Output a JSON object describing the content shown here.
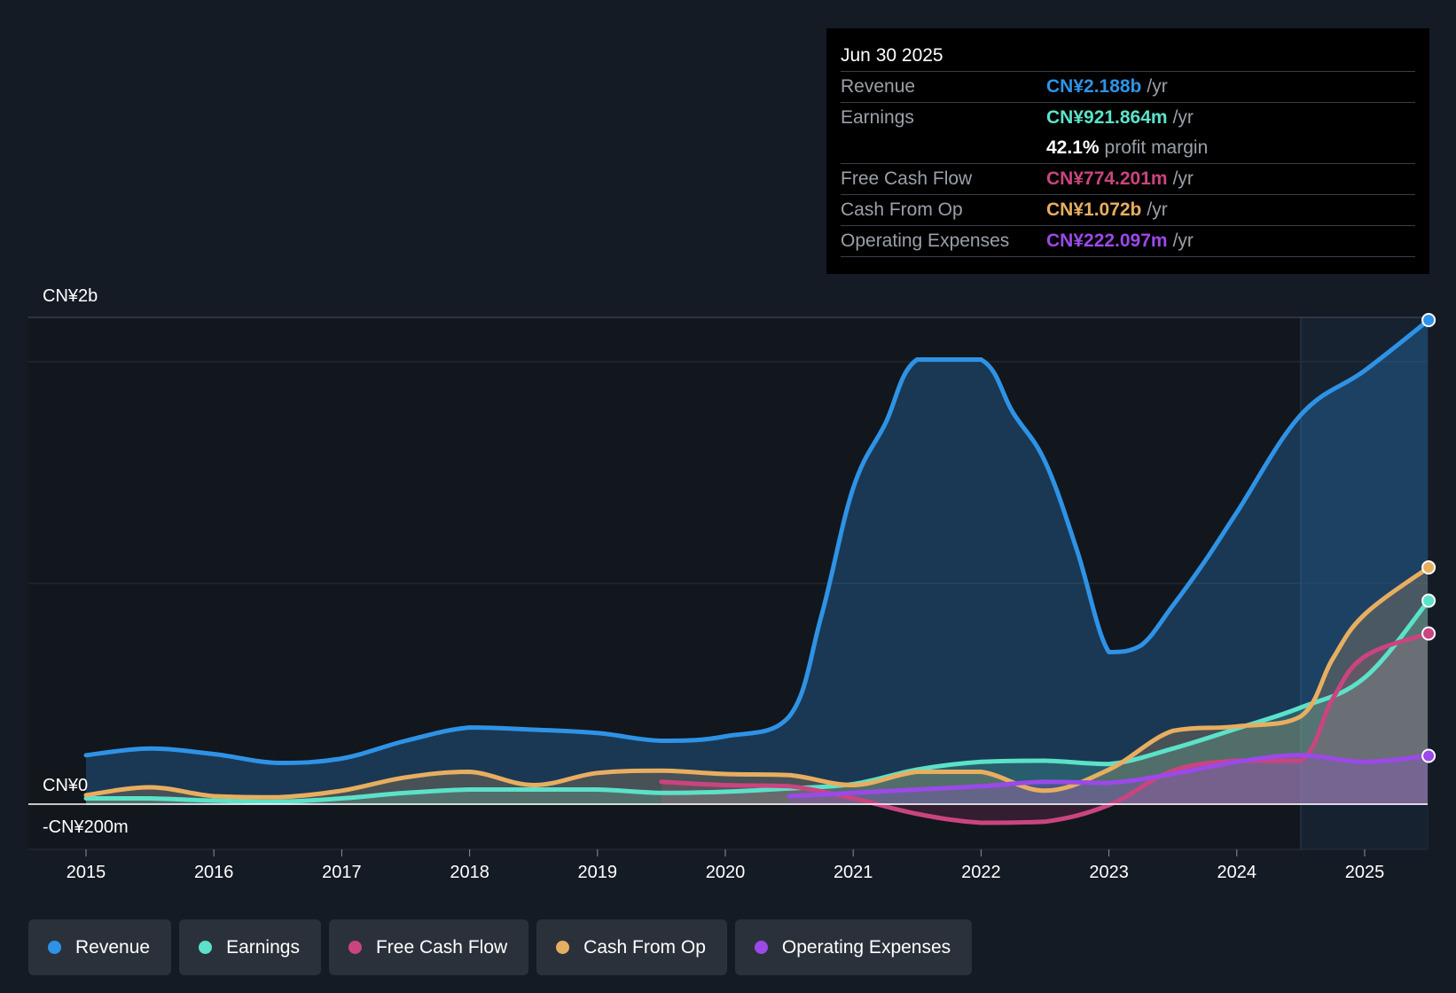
{
  "chart_data": {
    "type": "area",
    "y_axis": {
      "top_label": "CN¥2b",
      "zero_label": "CN¥0",
      "bottom_label": "-CN¥200m",
      "ylim": [
        -200,
        2200
      ]
    },
    "x_axis": {
      "ticks": [
        "2015",
        "2016",
        "2017",
        "2018",
        "2019",
        "2020",
        "2021",
        "2022",
        "2023",
        "2024",
        "2025"
      ],
      "xlim": [
        2014.55,
        2025.5
      ]
    },
    "forecast_start": 2024.5,
    "series": [
      {
        "name": "Revenue",
        "color": "#2e93e6",
        "x": [
          2015.0,
          2015.5,
          2016.0,
          2016.5,
          2017.0,
          2017.5,
          2018.0,
          2018.5,
          2019.0,
          2019.5,
          2020.0,
          2020.5,
          2020.75,
          2021.0,
          2021.25,
          2021.5,
          2022.0,
          2022.25,
          2022.5,
          2022.75,
          2023.0,
          2023.25,
          2023.5,
          2023.75,
          2024.0,
          2024.5,
          2025.0,
          2025.5
        ],
        "values": [
          225,
          255,
          230,
          190,
          210,
          290,
          350,
          340,
          325,
          290,
          310,
          400,
          850,
          1430,
          1720,
          2010,
          2010,
          1770,
          1550,
          1150,
          690,
          720,
          900,
          1100,
          1320,
          1760,
          1960,
          2188
        ]
      },
      {
        "name": "Earnings",
        "color": "#5be2c8",
        "x": [
          2015.0,
          2015.5,
          2016.0,
          2016.5,
          2017.0,
          2017.5,
          2018.0,
          2018.5,
          2019.0,
          2019.5,
          2020.0,
          2020.5,
          2021.0,
          2021.5,
          2022.0,
          2022.5,
          2023.0,
          2023.5,
          2024.0,
          2024.5,
          2025.0,
          2025.5
        ],
        "values": [
          30,
          30,
          20,
          15,
          30,
          55,
          70,
          70,
          70,
          55,
          60,
          75,
          95,
          160,
          195,
          200,
          185,
          255,
          345,
          440,
          575,
          922
        ]
      },
      {
        "name": "Free Cash Flow",
        "color": "#c9457f",
        "x": [
          2019.5,
          2020.0,
          2020.5,
          2021.0,
          2021.5,
          2022.0,
          2022.5,
          2023.0,
          2023.5,
          2024.0,
          2024.5,
          2024.75,
          2025.0,
          2025.5
        ],
        "values": [
          105,
          90,
          85,
          30,
          -40,
          -80,
          -75,
          0,
          155,
          200,
          200,
          480,
          670,
          774
        ]
      },
      {
        "name": "Cash From Op",
        "color": "#e8ae60",
        "x": [
          2015.0,
          2015.5,
          2016.0,
          2016.5,
          2017.0,
          2017.5,
          2018.0,
          2018.5,
          2019.0,
          2019.5,
          2020.0,
          2020.5,
          2021.0,
          2021.5,
          2022.0,
          2022.5,
          2023.0,
          2023.5,
          2024.0,
          2024.5,
          2024.75,
          2025.0,
          2025.5
        ],
        "values": [
          45,
          80,
          40,
          35,
          65,
          125,
          150,
          90,
          145,
          155,
          140,
          135,
          90,
          150,
          150,
          65,
          160,
          335,
          355,
          400,
          660,
          860,
          1072
        ]
      },
      {
        "name": "Operating Expenses",
        "color": "#9b49e8",
        "x": [
          2020.5,
          2021.0,
          2021.5,
          2022.0,
          2022.5,
          2023.0,
          2023.5,
          2024.0,
          2024.5,
          2025.0,
          2025.5
        ],
        "values": [
          40,
          55,
          70,
          85,
          105,
          100,
          140,
          195,
          225,
          195,
          222
        ]
      }
    ]
  },
  "tooltip": {
    "date": "Jun 30 2025",
    "rows": [
      {
        "label": "Revenue",
        "value": "CN¥2.188b",
        "unit": "/yr",
        "color": "#2e93e6"
      },
      {
        "label": "Earnings",
        "value": "CN¥921.864m",
        "unit": "/yr",
        "color": "#5be2c8"
      },
      {
        "label": "",
        "value": "42.1%",
        "unit": "profit margin",
        "color": "#ffffff"
      },
      {
        "label": "Free Cash Flow",
        "value": "CN¥774.201m",
        "unit": "/yr",
        "color": "#c9457f"
      },
      {
        "label": "Cash From Op",
        "value": "CN¥1.072b",
        "unit": "/yr",
        "color": "#e8ae60"
      },
      {
        "label": "Operating Expenses",
        "value": "CN¥222.097m",
        "unit": "/yr",
        "color": "#9b49e8"
      }
    ]
  },
  "legend": [
    {
      "label": "Revenue",
      "color": "#2e93e6"
    },
    {
      "label": "Earnings",
      "color": "#5be2c8"
    },
    {
      "label": "Free Cash Flow",
      "color": "#c9457f"
    },
    {
      "label": "Cash From Op",
      "color": "#e8ae60"
    },
    {
      "label": "Operating Expenses",
      "color": "#9b49e8"
    }
  ]
}
